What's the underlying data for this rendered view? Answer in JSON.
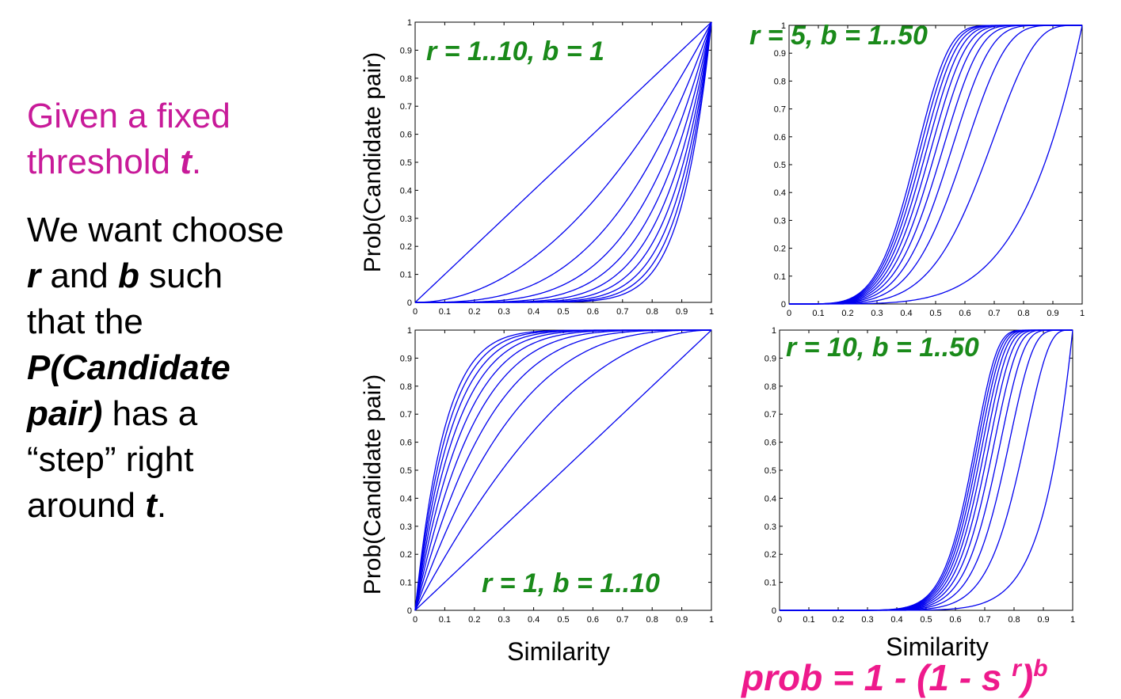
{
  "left_text": {
    "line1": "Given a fixed",
    "line2_pre": "threshold ",
    "line2_t": "t",
    "line2_post": ".",
    "we_want": "We want choose",
    "r": "r",
    "and": " and ",
    "b": "b",
    "such": " such",
    "that_the": "that the",
    "p_candidate": "P(Candidate",
    "pair_b": "pair)",
    "has_a": " has a",
    "step_right": "“step” right",
    "around": "around ",
    "t": "t",
    "period": "."
  },
  "formula": {
    "main": "prob = 1 - (1 - s ",
    "sup": "r",
    "close": ")",
    "sup2": "b"
  },
  "colors": {
    "curve": "#0000ee",
    "annotation": "#1a8a1a",
    "formula": "#ee1a8c",
    "heading": "#c81a99"
  },
  "chart_data": [
    {
      "type": "line",
      "formula": "1 - (1 - s^r)^b",
      "annotation": "r = 1..10, b = 1",
      "ylabel": "Prob(Candidate pair)",
      "xlabel": "",
      "xlim": [
        0,
        1
      ],
      "ylim": [
        0,
        1
      ],
      "xticks": [
        "0",
        "0.1",
        "0.2",
        "0.3",
        "0.4",
        "0.5",
        "0.6",
        "0.7",
        "0.8",
        "0.9",
        "1"
      ],
      "yticks": [
        "0",
        "0.1",
        "0.2",
        "0.3",
        "0.4",
        "0.5",
        "0.6",
        "0.7",
        "0.8",
        "0.9",
        "1"
      ],
      "series": [
        {
          "r": 1,
          "b": 1
        },
        {
          "r": 2,
          "b": 1
        },
        {
          "r": 3,
          "b": 1
        },
        {
          "r": 4,
          "b": 1
        },
        {
          "r": 5,
          "b": 1
        },
        {
          "r": 6,
          "b": 1
        },
        {
          "r": 7,
          "b": 1
        },
        {
          "r": 8,
          "b": 1
        },
        {
          "r": 9,
          "b": 1
        },
        {
          "r": 10,
          "b": 1
        }
      ]
    },
    {
      "type": "line",
      "formula": "1 - (1 - s^r)^b",
      "annotation": "r = 5, b = 1..50",
      "ylabel": "",
      "xlabel": "",
      "xlim": [
        0,
        1
      ],
      "ylim": [
        0,
        1
      ],
      "xticks": [
        "0",
        "0.1",
        "0.2",
        "0.3",
        "0.4",
        "0.5",
        "0.6",
        "0.7",
        "0.8",
        "0.9",
        "1"
      ],
      "yticks": [
        "0",
        "0.1",
        "0.2",
        "0.3",
        "0.4",
        "0.5",
        "0.6",
        "0.7",
        "0.8",
        "0.9",
        "1"
      ],
      "series": [
        {
          "r": 5,
          "b": 1
        },
        {
          "r": 5,
          "b": 5
        },
        {
          "r": 5,
          "b": 10
        },
        {
          "r": 5,
          "b": 15
        },
        {
          "r": 5,
          "b": 20
        },
        {
          "r": 5,
          "b": 25
        },
        {
          "r": 5,
          "b": 30
        },
        {
          "r": 5,
          "b": 35
        },
        {
          "r": 5,
          "b": 40
        },
        {
          "r": 5,
          "b": 45
        },
        {
          "r": 5,
          "b": 50
        }
      ]
    },
    {
      "type": "line",
      "formula": "1 - (1 - s^r)^b",
      "annotation": "r = 1, b = 1..10",
      "ylabel": "Prob(Candidate pair)",
      "xlabel": "Similarity",
      "xlim": [
        0,
        1
      ],
      "ylim": [
        0,
        1
      ],
      "xticks": [
        "0",
        "0.1",
        "0.2",
        "0.3",
        "0.4",
        "0.5",
        "0.6",
        "0.7",
        "0.8",
        "0.9",
        "1"
      ],
      "yticks": [
        "0",
        "0.1",
        "0.2",
        "0.3",
        "0.4",
        "0.5",
        "0.6",
        "0.7",
        "0.8",
        "0.9",
        "1"
      ],
      "series": [
        {
          "r": 1,
          "b": 1
        },
        {
          "r": 1,
          "b": 2
        },
        {
          "r": 1,
          "b": 3
        },
        {
          "r": 1,
          "b": 4
        },
        {
          "r": 1,
          "b": 5
        },
        {
          "r": 1,
          "b": 6
        },
        {
          "r": 1,
          "b": 7
        },
        {
          "r": 1,
          "b": 8
        },
        {
          "r": 1,
          "b": 9
        },
        {
          "r": 1,
          "b": 10
        }
      ]
    },
    {
      "type": "line",
      "formula": "1 - (1 - s^r)^b",
      "annotation": "r = 10, b = 1..50",
      "ylabel": "",
      "xlabel": "Similarity",
      "xlim": [
        0,
        1
      ],
      "ylim": [
        0,
        1
      ],
      "xticks": [
        "0",
        "0.1",
        "0.2",
        "0.3",
        "0.4",
        "0.5",
        "0.6",
        "0.7",
        "0.8",
        "0.9",
        "1"
      ],
      "yticks": [
        "0",
        "0.1",
        "0.2",
        "0.3",
        "0.4",
        "0.5",
        "0.6",
        "0.7",
        "0.8",
        "0.9",
        "1"
      ],
      "series": [
        {
          "r": 10,
          "b": 1
        },
        {
          "r": 10,
          "b": 5
        },
        {
          "r": 10,
          "b": 10
        },
        {
          "r": 10,
          "b": 15
        },
        {
          "r": 10,
          "b": 20
        },
        {
          "r": 10,
          "b": 25
        },
        {
          "r": 10,
          "b": 30
        },
        {
          "r": 10,
          "b": 35
        },
        {
          "r": 10,
          "b": 40
        },
        {
          "r": 10,
          "b": 45
        },
        {
          "r": 10,
          "b": 50
        }
      ]
    }
  ]
}
